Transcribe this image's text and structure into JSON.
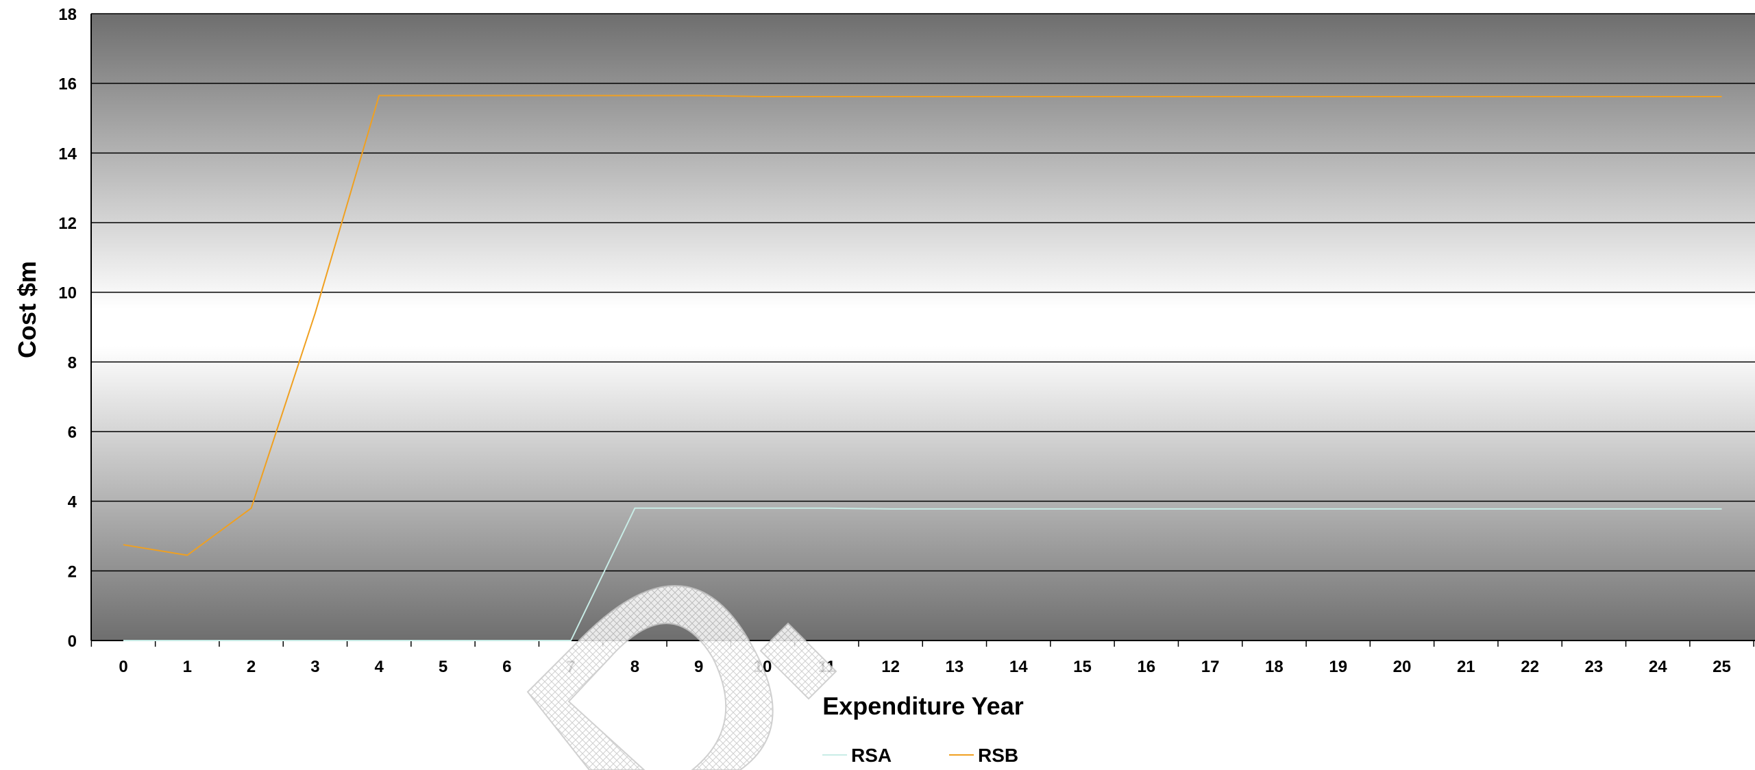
{
  "chart_data": {
    "type": "line",
    "title": "",
    "xlabel": "Expenditure Year",
    "ylabel": "Cost $m",
    "x": [
      0,
      1,
      2,
      3,
      4,
      5,
      6,
      7,
      8,
      9,
      10,
      11,
      12,
      13,
      14,
      15,
      16,
      17,
      18,
      19,
      20,
      21,
      22,
      23,
      24,
      25
    ],
    "ylim": [
      0,
      18
    ],
    "yticks": [
      0,
      2,
      4,
      6,
      8,
      10,
      12,
      14,
      16,
      18
    ],
    "grid": true,
    "legend_position": "bottom",
    "series": [
      {
        "name": "RSA",
        "color": "#c8ece6",
        "values": [
          0,
          0,
          0,
          0,
          0,
          0,
          0,
          0,
          3.8,
          3.8,
          3.8,
          3.8,
          3.78,
          3.78,
          3.78,
          3.78,
          3.78,
          3.78,
          3.78,
          3.78,
          3.78,
          3.78,
          3.78,
          3.78,
          3.78,
          3.78
        ]
      },
      {
        "name": "RSB",
        "color": "#f0a020",
        "values": [
          2.75,
          2.45,
          3.8,
          9.4,
          15.65,
          15.65,
          15.65,
          15.65,
          15.65,
          15.65,
          15.62,
          15.62,
          15.62,
          15.62,
          15.62,
          15.62,
          15.62,
          15.62,
          15.62,
          15.62,
          15.62,
          15.62,
          15.62,
          15.62,
          15.62,
          15.62
        ]
      }
    ]
  },
  "colors": {
    "plot_edge": "#6e6e6e",
    "plot_center": "#ffffff",
    "gridline": "#000000",
    "text": "#000000",
    "watermark": "#c8c8c8"
  }
}
